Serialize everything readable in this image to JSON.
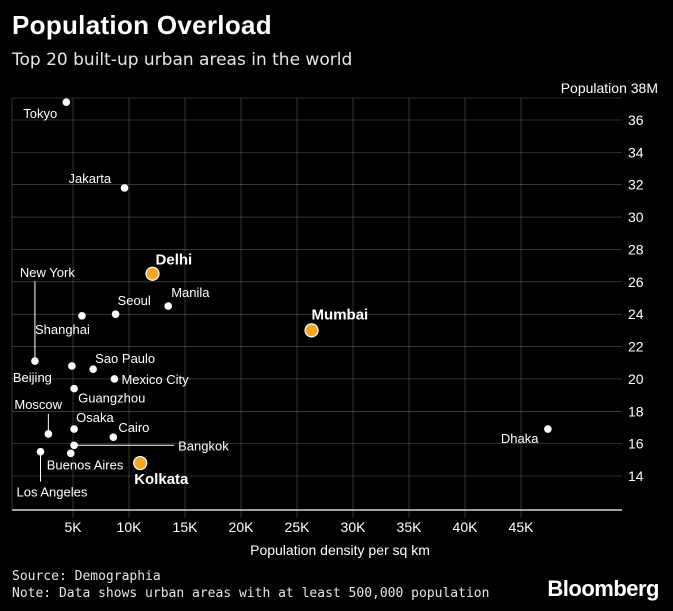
{
  "title": "Population Overload",
  "subtitle": "Top 20 built-up urban areas in the world",
  "source": "Source: Demographia",
  "note": "Note: Data shows urban areas with at least 500,000 population",
  "brand": "Bloomberg",
  "colors": {
    "background": "#000000",
    "point": "#ffffff",
    "highlight": "#f5a623",
    "grid": "#ffffff"
  },
  "chart_data": {
    "type": "scatter",
    "xlabel": "Population density per sq km",
    "ylabel": "Population",
    "xlim": [
      0,
      47500
    ],
    "ylim": [
      12.5,
      37
    ],
    "x_ticks": [
      5000,
      10000,
      15000,
      20000,
      25000,
      30000,
      35000,
      40000,
      45000
    ],
    "x_tick_labels": [
      "5K",
      "10K",
      "15K",
      "20K",
      "25K",
      "30K",
      "35K",
      "40K",
      "45K"
    ],
    "y_ticks": [
      14,
      16,
      18,
      20,
      22,
      24,
      26,
      28,
      30,
      32,
      34,
      36
    ],
    "y_tick_labels": [
      "14",
      "16",
      "18",
      "20",
      "22",
      "24",
      "26",
      "28",
      "30",
      "32",
      "34",
      "36"
    ],
    "y_top_label": "Population 38M",
    "grid": true,
    "points": [
      {
        "name": "Tokyo",
        "x": 4400,
        "y": 37.1,
        "highlight": false
      },
      {
        "name": "Jakarta",
        "x": 9600,
        "y": 31.8,
        "highlight": false
      },
      {
        "name": "Delhi",
        "x": 12100,
        "y": 26.5,
        "highlight": true
      },
      {
        "name": "Manila",
        "x": 13500,
        "y": 24.5,
        "highlight": false
      },
      {
        "name": "Seoul",
        "x": 8800,
        "y": 24.0,
        "highlight": false
      },
      {
        "name": "Mumbai",
        "x": 26300,
        "y": 23.0,
        "highlight": true
      },
      {
        "name": "Shanghai",
        "x": 5800,
        "y": 23.9,
        "highlight": false
      },
      {
        "name": "New York",
        "x": 1600,
        "y": 21.1,
        "highlight": false
      },
      {
        "name": "Sao Paulo",
        "x": 6800,
        "y": 20.6,
        "highlight": false
      },
      {
        "name": "Beijing",
        "x": 4900,
        "y": 20.8,
        "highlight": false
      },
      {
        "name": "Mexico City",
        "x": 8700,
        "y": 20.0,
        "highlight": false
      },
      {
        "name": "Guangzhou",
        "x": 5100,
        "y": 19.4,
        "highlight": false
      },
      {
        "name": "Dhaka",
        "x": 47400,
        "y": 16.9,
        "highlight": false
      },
      {
        "name": "Moscow",
        "x": 2800,
        "y": 16.6,
        "highlight": false
      },
      {
        "name": "Osaka",
        "x": 5100,
        "y": 16.9,
        "highlight": false
      },
      {
        "name": "Cairo",
        "x": 8600,
        "y": 16.4,
        "highlight": false
      },
      {
        "name": "Bangkok",
        "x": 5100,
        "y": 15.9,
        "highlight": false
      },
      {
        "name": "Los Angeles",
        "x": 2100,
        "y": 15.5,
        "highlight": false
      },
      {
        "name": "Buenos Aires",
        "x": 4800,
        "y": 15.4,
        "highlight": false
      },
      {
        "name": "Kolkata",
        "x": 11000,
        "y": 14.8,
        "highlight": true
      }
    ]
  }
}
